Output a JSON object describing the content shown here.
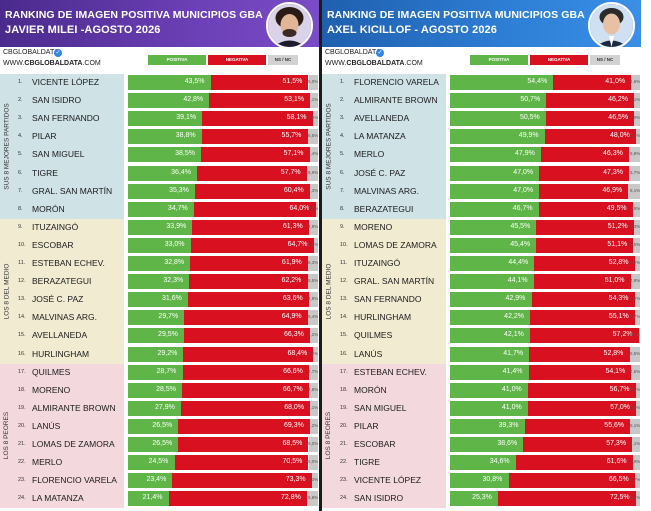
{
  "brand": {
    "handle": "CBGLOBALDATA",
    "site_prefix": "WWW.",
    "site_main": "CBGLOBALDATA",
    "site_suffix": ".COM"
  },
  "legend": {
    "positive": "POSITIVA",
    "negative": "NEGATIVA",
    "ns": "NS / NC"
  },
  "colors": {
    "positive": "#5fb548",
    "negative": "#d8101f",
    "ns": "#c8c8c8"
  },
  "bands": {
    "top": "SUS 8 MEJORES PARTIDOS",
    "mid": "LOS 8 DEL MEDIO",
    "bottom": "LOS 8 PEORES"
  },
  "chart_data": [
    {
      "type": "bar",
      "stacked": true,
      "orientation": "horizontal",
      "title": "RANKING DE IMAGEN POSITIVA MUNICIPIOS GBA",
      "subtitle": "JAVIER MILEI -AGOSTO 2026",
      "categories": [
        "VICENTE LÓPEZ",
        "SAN ISIDRO",
        "SAN FERNANDO",
        "PILAR",
        "SAN MIGUEL",
        "TIGRE",
        "GRAL. SAN MARTÍN",
        "MORÓN",
        "ITUZAINGÓ",
        "ESCOBAR",
        "ESTEBAN ECHEV.",
        "BERAZATEGUI",
        "JOSÉ C. PAZ",
        "MALVINAS ARG.",
        "AVELLANEDA",
        "HURLINGHAM",
        "QUILMES",
        "MORENO",
        "ALMIRANTE BROWN",
        "LANÚS",
        "LOMAS DE ZAMORA",
        "MERLO",
        "FLORENCIO VARELA",
        "LA MATANZA"
      ],
      "positive_labels": [
        "43,5%",
        "42,8%",
        "39,1%",
        "38,8%",
        "38,5%",
        "36,4%",
        "35,3%",
        "34,7%",
        "33,9%",
        "33,0%",
        "32,8%",
        "32,3%",
        "31,6%",
        "29,7%",
        "29,5%",
        "29,2%",
        "28,7%",
        "28,5%",
        "27,9%",
        "26,5%",
        "26,5%",
        "24,5%",
        "23,4%",
        "21,4%"
      ],
      "negative_labels": [
        "51,5%",
        "53,1%",
        "58,1%",
        "55,7%",
        "57,1%",
        "57,7%",
        "60,4%",
        "64,0%",
        "61,3%",
        "64,7%",
        "61,9%",
        "62,2%",
        "63,6%",
        "64,9%",
        "66,3%",
        "68,4%",
        "66,6%",
        "66,7%",
        "68,0%",
        "69,3%",
        "68,5%",
        "70,5%",
        "73,3%",
        "72,8%"
      ],
      "ns_labels": [
        "5,0%",
        "4,1%",
        "2,8%",
        "5,5%",
        "4,4%",
        "5,9%",
        "4,3%",
        "1,3%",
        "4,8%",
        "2,3%",
        "5,3%",
        "5,5%",
        "4,8%",
        "5,4%",
        "4,2%",
        "2,4%",
        "4,7%",
        "4,8%",
        "4,1%",
        "4,2%",
        "5,0%",
        "5,0%",
        "3,3%",
        "5,8%"
      ],
      "series": [
        {
          "name": "POSITIVA",
          "values": [
            43.5,
            42.8,
            39.1,
            38.8,
            38.5,
            36.4,
            35.3,
            34.7,
            33.9,
            33.0,
            32.8,
            32.3,
            31.6,
            29.7,
            29.5,
            29.2,
            28.7,
            28.5,
            27.9,
            26.5,
            26.5,
            24.5,
            23.4,
            21.4
          ]
        },
        {
          "name": "NEGATIVA",
          "values": [
            51.5,
            53.1,
            58.1,
            55.7,
            57.1,
            57.7,
            60.4,
            64.0,
            61.3,
            64.7,
            61.9,
            62.2,
            63.6,
            64.9,
            66.3,
            68.4,
            66.6,
            66.7,
            68.0,
            69.3,
            68.5,
            70.5,
            73.3,
            72.8
          ]
        },
        {
          "name": "NS / NC",
          "values": [
            5.0,
            4.1,
            2.8,
            5.5,
            4.4,
            5.9,
            4.3,
            1.3,
            4.8,
            2.3,
            5.3,
            5.5,
            4.8,
            5.4,
            4.2,
            2.4,
            4.7,
            4.8,
            4.1,
            4.2,
            5.0,
            5.0,
            3.3,
            5.8
          ]
        }
      ]
    },
    {
      "type": "bar",
      "stacked": true,
      "orientation": "horizontal",
      "title": "RANKING DE IMAGEN POSITIVA MUNICIPIOS GBA",
      "subtitle": "AXEL KICILLOF - AGOSTO 2026",
      "categories": [
        "FLORENCIO VARELA",
        "ALMIRANTE BROWN",
        "AVELLANEDA",
        "LA MATANZA",
        "MERLO",
        "JOSÉ C. PAZ",
        "MALVINAS ARG.",
        "BERAZATEGUI",
        "MORENO",
        "LOMAS DE ZAMORA",
        "ITUZAINGÓ",
        "GRAL. SAN MARTÍN",
        "SAN FERNANDO",
        "HURLINGHAM",
        "QUILMES",
        "LANÚS",
        "ESTEBAN ECHEV.",
        "MORÓN",
        "SAN MIGUEL",
        "PILAR",
        "ESCOBAR",
        "TIGRE",
        "VICENTE LÓPEZ",
        "SAN ISIDRO"
      ],
      "positive_labels": [
        "54,4%",
        "50,7%",
        "50,5%",
        "49,9%",
        "47,9%",
        "47,0%",
        "47,0%",
        "46,7%",
        "45,5%",
        "45,4%",
        "44,4%",
        "44,1%",
        "42,9%",
        "42,2%",
        "42,1%",
        "41,7%",
        "41,4%",
        "41,0%",
        "41,0%",
        "39,3%",
        "38,6%",
        "34,6%",
        "30,8%",
        "25,3%"
      ],
      "negative_labels": [
        "41,0%",
        "46,2%",
        "46,5%",
        "48,0%",
        "46,3%",
        "47,3%",
        "46,9%",
        "49,5%",
        "51,2%",
        "51,1%",
        "52,8%",
        "51,0%",
        "54,3%",
        "55,1%",
        "57,2%",
        "52,8%",
        "54,1%",
        "56,7%",
        "57,0%",
        "55,6%",
        "57,3%",
        "61,6%",
        "66,5%",
        "72,5%"
      ],
      "ns_labels": [
        "4,6%",
        "3,1%",
        "3,0%",
        "2,1%",
        "5,8%",
        "5,7%",
        "6,1%",
        "3,8%",
        "3,3%",
        "3,5%",
        "2,8%",
        "4,9%",
        "2,8%",
        "2,7%",
        "0,7%",
        "5,5%",
        "4,5%",
        "2,3%",
        "2,0%",
        "5,1%",
        "4,1%",
        "3,8%",
        "2,7%",
        "2,2%"
      ],
      "series": [
        {
          "name": "POSITIVA",
          "values": [
            54.4,
            50.7,
            50.5,
            49.9,
            47.9,
            47.0,
            47.0,
            46.7,
            45.5,
            45.4,
            44.4,
            44.1,
            42.9,
            42.2,
            42.1,
            41.7,
            41.4,
            41.0,
            41.0,
            39.3,
            38.6,
            34.6,
            30.8,
            25.3
          ]
        },
        {
          "name": "NEGATIVA",
          "values": [
            41.0,
            46.2,
            46.5,
            48.0,
            46.3,
            47.3,
            46.9,
            49.5,
            51.2,
            51.1,
            52.8,
            51.0,
            54.3,
            55.1,
            57.2,
            52.8,
            54.1,
            56.7,
            57.0,
            55.6,
            57.3,
            61.6,
            66.5,
            72.5
          ]
        },
        {
          "name": "NS / NC",
          "values": [
            4.6,
            3.1,
            3.0,
            2.1,
            5.8,
            5.7,
            6.1,
            3.8,
            3.3,
            3.5,
            2.8,
            4.9,
            2.8,
            2.7,
            0.7,
            5.5,
            4.5,
            2.3,
            2.0,
            5.1,
            4.1,
            3.8,
            2.7,
            2.2
          ]
        }
      ]
    }
  ]
}
